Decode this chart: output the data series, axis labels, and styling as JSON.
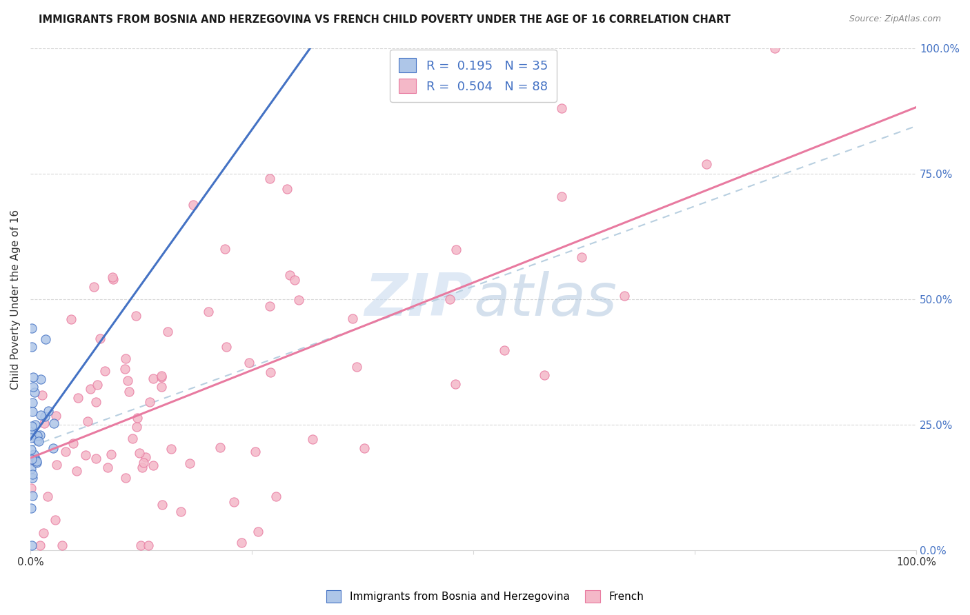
{
  "title": "IMMIGRANTS FROM BOSNIA AND HERZEGOVINA VS FRENCH CHILD POVERTY UNDER THE AGE OF 16 CORRELATION CHART",
  "source": "Source: ZipAtlas.com",
  "ylabel": "Child Poverty Under the Age of 16",
  "legend_label1": "Immigrants from Bosnia and Herzegovina",
  "legend_label2": "French",
  "r1": "0.195",
  "n1": "35",
  "r2": "0.504",
  "n2": "88",
  "watermark_zip": "ZIP",
  "watermark_atlas": "atlas",
  "ytick_labels": [
    "0.0%",
    "25.0%",
    "50.0%",
    "75.0%",
    "100.0%"
  ],
  "ytick_values": [
    0.0,
    0.25,
    0.5,
    0.75,
    1.0
  ],
  "color_blue_fill": "#aec6e8",
  "color_blue_edge": "#4472c4",
  "color_pink_fill": "#f4b8c8",
  "color_pink_edge": "#e87aa0",
  "color_blue_line": "#4472c4",
  "color_pink_line": "#e87aa0",
  "color_dashed": "#b8cfe0",
  "color_grid": "#d8d8d8",
  "background": "#ffffff"
}
